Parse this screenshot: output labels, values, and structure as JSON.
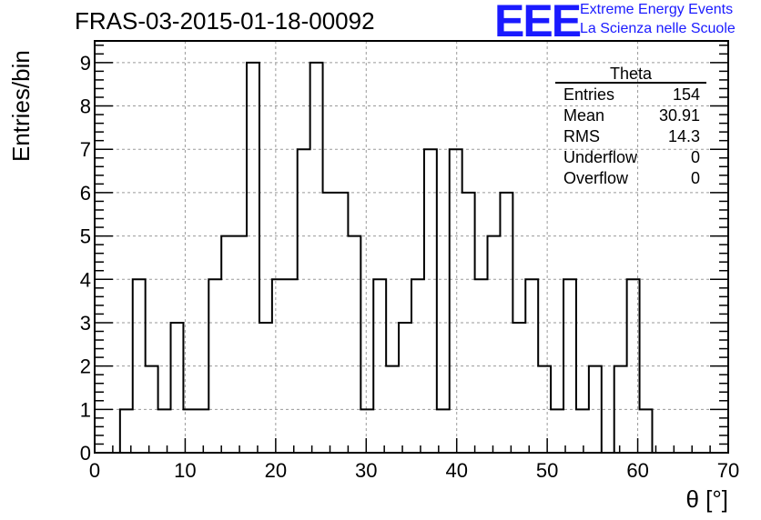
{
  "header": {
    "run_title": "FRAS-03-2015-01-18-00092",
    "logo_letters": "EEE",
    "logo_line1": "Extreme Energy Events",
    "logo_line2": "La Scienza nelle Scuole",
    "logo_color": "#1a1aff"
  },
  "stats_box": {
    "title": "Theta",
    "rows": [
      {
        "label": "Entries",
        "value": "154"
      },
      {
        "label": "Mean",
        "value": "30.91"
      },
      {
        "label": "RMS",
        "value": "14.3"
      },
      {
        "label": "Underflow",
        "value": "0"
      },
      {
        "label": "Overflow",
        "value": "0"
      }
    ]
  },
  "chart_data": {
    "type": "histogram",
    "xlabel": "θ [°]",
    "ylabel": "Entries/bin",
    "xlim": [
      0,
      70
    ],
    "ylim": [
      0,
      9.5
    ],
    "xticks": [
      0,
      10,
      20,
      30,
      40,
      50,
      60,
      70
    ],
    "yticks": [
      0,
      1,
      2,
      3,
      4,
      5,
      6,
      7,
      8,
      9
    ],
    "grid": true,
    "bin_edges": [
      0,
      1.4,
      2.8,
      4.2,
      5.6,
      7,
      8.4,
      9.8,
      11.2,
      12.6,
      14,
      15.4,
      16.8,
      18.2,
      19.6,
      21,
      22.4,
      23.8,
      25.2,
      26.6,
      28,
      29.4,
      30.8,
      32.2,
      33.6,
      35,
      36.4,
      37.8,
      39.2,
      40.6,
      42,
      43.4,
      44.8,
      46.2,
      47.6,
      49,
      50.4,
      51.8,
      53.2,
      54.6,
      56,
      57.4,
      58.8,
      60.2,
      61.6,
      63,
      64.4,
      65.8,
      67.2,
      68.6,
      70
    ],
    "counts": [
      0,
      0,
      1,
      4,
      2,
      1,
      3,
      1,
      1,
      4,
      5,
      5,
      9,
      3,
      4,
      4,
      7,
      9,
      6,
      6,
      5,
      1,
      4,
      2,
      3,
      4,
      7,
      1,
      7,
      6,
      4,
      5,
      6,
      3,
      4,
      2,
      1,
      4,
      1,
      2,
      0,
      2,
      4,
      1,
      0,
      0,
      0,
      0,
      0,
      0
    ],
    "line_color": "#000000"
  }
}
